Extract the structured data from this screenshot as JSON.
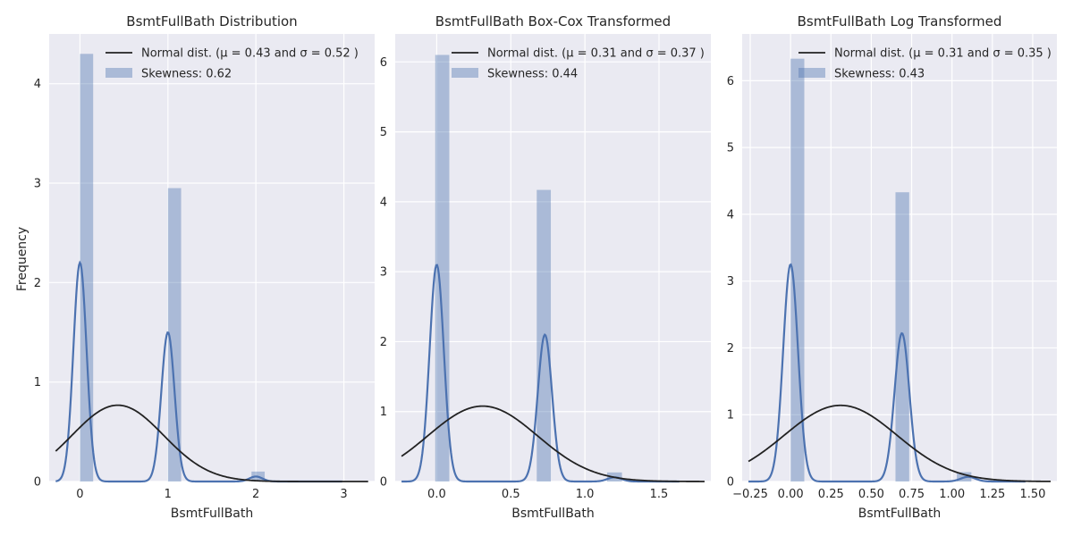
{
  "figure": {
    "ylabel": "Frequency"
  },
  "chart_data": [
    {
      "type": "histogram+kde",
      "title": "BsmtFullBath Distribution",
      "xlabel": "BsmtFullBath",
      "ylabel": "Frequency",
      "xlim": [
        -0.35,
        3.35
      ],
      "ylim": [
        0,
        4.5
      ],
      "xticks": [
        0,
        1,
        2,
        3
      ],
      "xtick_labels": [
        "0",
        "1",
        "2",
        "3"
      ],
      "yticks": [
        0,
        1,
        2,
        3,
        4
      ],
      "grid": true,
      "legend_placement": "top-right",
      "normal_dist": {
        "mu": 0.43,
        "sigma": 0.52,
        "label": "Normal dist. (μ =  0.43 and σ =  0.52 )"
      },
      "skewness_label": "Skewness: 0.62",
      "bars": [
        {
          "x0": 0.0,
          "x1": 0.15,
          "height": 4.3
        },
        {
          "x0": 1.0,
          "x1": 1.15,
          "height": 2.95
        },
        {
          "x0": 1.95,
          "x1": 2.1,
          "height": 0.1
        }
      ],
      "kde_peaks": [
        {
          "center": 0.0,
          "height": 2.2,
          "width": 0.075
        },
        {
          "center": 1.0,
          "height": 1.5,
          "width": 0.075
        },
        {
          "center": 2.0,
          "height": 0.05,
          "width": 0.075
        }
      ]
    },
    {
      "type": "histogram+kde",
      "title": "BsmtFullBath Box-Cox Transformed",
      "xlabel": "BsmtFullBath",
      "xlim": [
        -0.28,
        1.85
      ],
      "ylim": [
        0,
        6.4
      ],
      "xticks": [
        0.0,
        0.5,
        1.0,
        1.5
      ],
      "xtick_labels": [
        "0.0",
        "0.5",
        "1.0",
        "1.5"
      ],
      "yticks": [
        0,
        1,
        2,
        3,
        4,
        5,
        6
      ],
      "grid": true,
      "legend_placement": "top-right",
      "normal_dist": {
        "mu": 0.31,
        "sigma": 0.37,
        "label": "Normal dist. (μ =  0.31 and σ =  0.37 )"
      },
      "skewness_label": "Skewness: 0.44",
      "bars": [
        {
          "x0": -0.01,
          "x1": 0.085,
          "height": 6.1
        },
        {
          "x0": 0.675,
          "x1": 0.77,
          "height": 4.17
        },
        {
          "x0": 1.15,
          "x1": 1.25,
          "height": 0.13
        }
      ],
      "kde_peaks": [
        {
          "center": 0.0,
          "height": 3.1,
          "width": 0.048
        },
        {
          "center": 0.73,
          "height": 2.1,
          "width": 0.048
        },
        {
          "center": 1.2,
          "height": 0.06,
          "width": 0.048
        }
      ]
    },
    {
      "type": "histogram+kde",
      "title": "BsmtFullBath Log Transformed",
      "xlabel": "BsmtFullBath",
      "xlim": [
        -0.3,
        1.65
      ],
      "ylim": [
        0,
        6.7
      ],
      "xticks": [
        -0.25,
        0.0,
        0.25,
        0.5,
        0.75,
        1.0,
        1.25,
        1.5
      ],
      "xtick_labels": [
        "−0.25",
        "0.00",
        "0.25",
        "0.50",
        "0.75",
        "1.00",
        "1.25",
        "1.50"
      ],
      "yticks": [
        0,
        1,
        2,
        3,
        4,
        5,
        6
      ],
      "grid": true,
      "legend_placement": "top-right",
      "normal_dist": {
        "mu": 0.31,
        "sigma": 0.35,
        "label": "Normal dist. (μ =  0.31 and σ =  0.35 )"
      },
      "skewness_label": "Skewness: 0.43",
      "bars": [
        {
          "x0": 0.0,
          "x1": 0.085,
          "height": 6.33
        },
        {
          "x0": 0.65,
          "x1": 0.735,
          "height": 4.33
        },
        {
          "x0": 1.03,
          "x1": 1.12,
          "height": 0.14
        }
      ],
      "kde_peaks": [
        {
          "center": 0.0,
          "height": 3.25,
          "width": 0.046
        },
        {
          "center": 0.69,
          "height": 2.22,
          "width": 0.046
        },
        {
          "center": 1.1,
          "height": 0.07,
          "width": 0.046
        }
      ]
    }
  ],
  "colors": {
    "axes_bg": "#EAEAF2",
    "grid": "#FFFFFF",
    "bar": "#4C72B0",
    "kde": "#4C72B0",
    "normal_line": "#222222",
    "text": "#262626"
  }
}
